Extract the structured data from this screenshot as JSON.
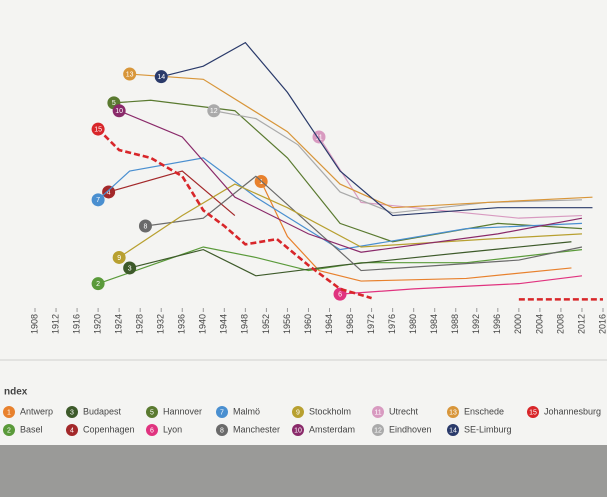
{
  "chart_data": {
    "type": "line",
    "legend_title": "ndex",
    "xlim": [
      1908,
      2016
    ],
    "xticks": [
      1908,
      1912,
      1916,
      1920,
      1924,
      1928,
      1932,
      1936,
      1940,
      1944,
      1948,
      1952,
      1956,
      1960,
      1964,
      1968,
      1972,
      1976,
      1980,
      1984,
      1988,
      1992,
      1996,
      2000,
      2004,
      2008,
      2012,
      2016
    ],
    "ylim": [
      0,
      10
    ],
    "series": [
      {
        "name": "Antwerp",
        "label": "1",
        "color": "#e8812d",
        "x": [
          1951,
          1956,
          1962,
          1970,
          1990,
          2010
        ],
        "values": [
          4.6,
          2.5,
          1.2,
          0.8,
          0.9,
          1.3
        ]
      },
      {
        "name": "Basel",
        "label": "2",
        "color": "#5a9a3a",
        "x": [
          1920,
          1940,
          1950,
          1960,
          1970,
          1990,
          2012
        ],
        "values": [
          0.7,
          2.1,
          1.7,
          1.2,
          1.5,
          1.5,
          2.0
        ]
      },
      {
        "name": "Budapest",
        "label": "3",
        "color": "#3d5a2a",
        "x": [
          1926,
          1940,
          1950,
          1966,
          1990,
          2010
        ],
        "values": [
          1.3,
          2.0,
          1.0,
          1.4,
          1.9,
          2.3
        ]
      },
      {
        "name": "Copenhagen",
        "label": "4",
        "color": "#a3282a",
        "x": [
          1922,
          1936,
          1946
        ],
        "values": [
          4.2,
          5.0,
          3.3
        ]
      },
      {
        "name": "Hannover",
        "label": "5",
        "color": "#5a7a30",
        "x": [
          1923,
          1930,
          1946,
          1956,
          1966,
          1976,
          1996,
          2012
        ],
        "values": [
          7.6,
          7.7,
          7.3,
          5.5,
          3.0,
          2.3,
          3.0,
          2.8
        ]
      },
      {
        "name": "Lyon",
        "label": "6",
        "color": "#e0337f",
        "x": [
          1966,
          1980,
          2000,
          2012
        ],
        "values": [
          0.3,
          0.5,
          0.7,
          1.0
        ]
      },
      {
        "name": "Malmö",
        "label": "7",
        "color": "#4a8fd0",
        "x": [
          1920,
          1926,
          1940,
          1950,
          1966,
          1990,
          2012
        ],
        "values": [
          3.9,
          5.0,
          5.5,
          4.0,
          2.0,
          2.8,
          3.0
        ]
      },
      {
        "name": "Manchester",
        "label": "8",
        "color": "#6a6a6a",
        "x": [
          1929,
          1940,
          1950,
          1960,
          1970,
          2000,
          2012
        ],
        "values": [
          2.9,
          3.2,
          4.8,
          3.0,
          1.2,
          1.6,
          2.1
        ]
      },
      {
        "name": "Stockholm",
        "label": "9",
        "color": "#b8a030",
        "x": [
          1924,
          1936,
          1946,
          1956,
          1970,
          1994,
          2012
        ],
        "values": [
          1.7,
          3.3,
          4.5,
          3.6,
          2.1,
          2.4,
          2.6
        ]
      },
      {
        "name": "Amsterdam",
        "label": "10",
        "color": "#8a2a6a",
        "x": [
          1924,
          1936,
          1946,
          1960,
          1970,
          1996,
          2012
        ],
        "values": [
          7.3,
          6.3,
          4.0,
          2.6,
          1.9,
          2.6,
          3.2
        ]
      },
      {
        "name": "Utrecht",
        "label": "11",
        "color": "#d89ac0",
        "x": [
          1962,
          1970,
          1980,
          2000,
          2012
        ],
        "values": [
          6.3,
          3.8,
          3.6,
          3.2,
          3.3
        ]
      },
      {
        "name": "Eindhoven",
        "label": "12",
        "color": "#aaaaaa",
        "x": [
          1942,
          1950,
          1958,
          1966,
          1976,
          1994,
          2012
        ],
        "values": [
          7.3,
          7.0,
          6.0,
          4.2,
          3.4,
          3.8,
          3.9
        ]
      },
      {
        "name": "Enschede",
        "label": "13",
        "color": "#d8963a",
        "x": [
          1926,
          1940,
          1956,
          1966,
          1976,
          1994,
          2014
        ],
        "values": [
          8.7,
          8.5,
          6.5,
          4.5,
          3.6,
          3.8,
          4.0
        ]
      },
      {
        "name": "SE-Limburg",
        "label": "14",
        "color": "#2a3a6a",
        "x": [
          1932,
          1940,
          1948,
          1956,
          1966,
          1976,
          1996,
          2014
        ],
        "values": [
          8.6,
          9.0,
          9.9,
          8.0,
          5.0,
          3.3,
          3.6,
          3.6
        ]
      },
      {
        "name": "Johannesburg",
        "label": "15",
        "color": "#d8262a",
        "x": [
          1920,
          1924,
          1930,
          1936,
          1940,
          1944,
          1948,
          1954,
          1960,
          1966,
          1972,
          1976,
          2000,
          2016
        ],
        "values": [
          6.6,
          5.8,
          5.5,
          4.8,
          3.5,
          2.9,
          2.2,
          2.4,
          1.4,
          0.5,
          0.15,
          null,
          0.1,
          0.1
        ]
      }
    ]
  }
}
